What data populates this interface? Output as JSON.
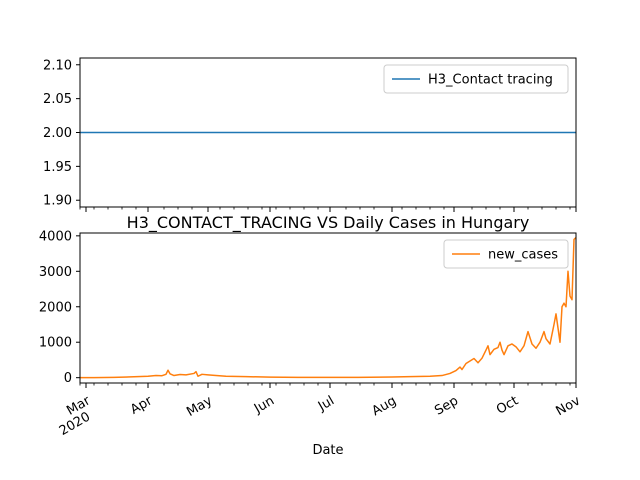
{
  "chart_data": {
    "type": "line",
    "title": "H3_CONTACT_TRACING VS Daily Cases in Hungary",
    "xlabel": "Date",
    "x_range": [
      "2020-02-27",
      "2020-11-01"
    ],
    "x_ticks": [
      {
        "date": "2020-03-01",
        "label": "Mar",
        "sublabel": "2020"
      },
      {
        "date": "2020-04-01",
        "label": "Apr"
      },
      {
        "date": "2020-05-01",
        "label": "May"
      },
      {
        "date": "2020-06-01",
        "label": "Jun"
      },
      {
        "date": "2020-07-01",
        "label": "Jul"
      },
      {
        "date": "2020-08-01",
        "label": "Aug"
      },
      {
        "date": "2020-09-01",
        "label": "Sep"
      },
      {
        "date": "2020-10-01",
        "label": "Oct"
      },
      {
        "date": "2020-11-01",
        "label": "Nov"
      }
    ],
    "subplots": [
      {
        "legend_position": "upper-right",
        "ylim": [
          1.89,
          2.11
        ],
        "y_ticks": [
          1.9,
          1.95,
          2.0,
          2.05,
          2.1
        ],
        "y_tick_labels": [
          "1.90",
          "1.95",
          "2.00",
          "2.05",
          "2.10"
        ],
        "series": [
          {
            "name": "H3_Contact tracing",
            "color": "#1f77b4",
            "points": [
              [
                "2020-02-27",
                2.0
              ],
              [
                "2020-11-01",
                2.0
              ]
            ]
          }
        ]
      },
      {
        "legend_position": "upper-right",
        "ylim": [
          -150,
          4080
        ],
        "y_ticks": [
          0,
          1000,
          2000,
          3000,
          4000
        ],
        "y_tick_labels": [
          "0",
          "1000",
          "2000",
          "3000",
          "4000"
        ],
        "series": [
          {
            "name": "new_cases",
            "color": "#ff7f0e",
            "points": [
              [
                "2020-02-27",
                0
              ],
              [
                "2020-03-05",
                2
              ],
              [
                "2020-03-15",
                8
              ],
              [
                "2020-03-25",
                25
              ],
              [
                "2020-04-01",
                40
              ],
              [
                "2020-04-05",
                60
              ],
              [
                "2020-04-08",
                55
              ],
              [
                "2020-04-10",
                95
              ],
              [
                "2020-04-11",
                210
              ],
              [
                "2020-04-12",
                110
              ],
              [
                "2020-04-14",
                60
              ],
              [
                "2020-04-17",
                90
              ],
              [
                "2020-04-20",
                80
              ],
              [
                "2020-04-24",
                120
              ],
              [
                "2020-04-25",
                170
              ],
              [
                "2020-04-26",
                40
              ],
              [
                "2020-04-28",
                95
              ],
              [
                "2020-05-01",
                80
              ],
              [
                "2020-05-05",
                60
              ],
              [
                "2020-05-10",
                40
              ],
              [
                "2020-05-20",
                30
              ],
              [
                "2020-06-01",
                15
              ],
              [
                "2020-06-15",
                10
              ],
              [
                "2020-07-01",
                8
              ],
              [
                "2020-07-15",
                10
              ],
              [
                "2020-08-01",
                20
              ],
              [
                "2020-08-10",
                30
              ],
              [
                "2020-08-20",
                40
              ],
              [
                "2020-08-26",
                60
              ],
              [
                "2020-08-30",
                120
              ],
              [
                "2020-09-02",
                200
              ],
              [
                "2020-09-04",
                300
              ],
              [
                "2020-09-05",
                230
              ],
              [
                "2020-09-07",
                400
              ],
              [
                "2020-09-09",
                470
              ],
              [
                "2020-09-11",
                540
              ],
              [
                "2020-09-13",
                420
              ],
              [
                "2020-09-15",
                550
              ],
              [
                "2020-09-17",
                780
              ],
              [
                "2020-09-18",
                900
              ],
              [
                "2020-09-19",
                650
              ],
              [
                "2020-09-21",
                800
              ],
              [
                "2020-09-23",
                850
              ],
              [
                "2020-09-24",
                1000
              ],
              [
                "2020-09-25",
                780
              ],
              [
                "2020-09-26",
                650
              ],
              [
                "2020-09-28",
                900
              ],
              [
                "2020-09-30",
                950
              ],
              [
                "2020-10-02",
                870
              ],
              [
                "2020-10-04",
                730
              ],
              [
                "2020-10-06",
                900
              ],
              [
                "2020-10-08",
                1300
              ],
              [
                "2020-10-10",
                950
              ],
              [
                "2020-10-12",
                830
              ],
              [
                "2020-10-14",
                1000
              ],
              [
                "2020-10-16",
                1300
              ],
              [
                "2020-10-17",
                1100
              ],
              [
                "2020-10-19",
                950
              ],
              [
                "2020-10-21",
                1500
              ],
              [
                "2020-10-22",
                1800
              ],
              [
                "2020-10-23",
                1400
              ],
              [
                "2020-10-24",
                1000
              ],
              [
                "2020-10-25",
                2000
              ],
              [
                "2020-10-26",
                2100
              ],
              [
                "2020-10-27",
                2000
              ],
              [
                "2020-10-28",
                3000
              ],
              [
                "2020-10-29",
                2300
              ],
              [
                "2020-10-30",
                2200
              ],
              [
                "2020-10-31",
                3900
              ],
              [
                "2020-11-01",
                3950
              ]
            ]
          }
        ]
      }
    ]
  }
}
